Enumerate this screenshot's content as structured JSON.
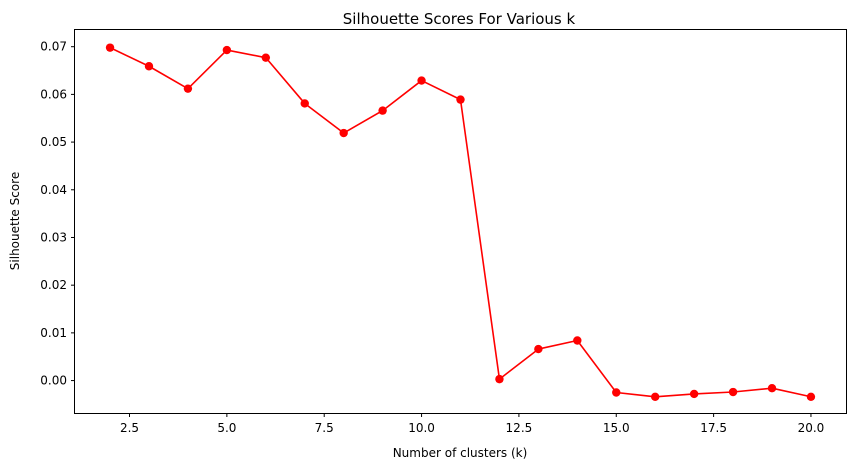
{
  "chart_data": {
    "type": "line",
    "title": "Silhouette Scores For Various k",
    "xlabel": "Number of clusters (k)",
    "ylabel": "Silhouette Score",
    "xlim": [
      1.1,
      20.9
    ],
    "ylim": [
      -0.0068,
      0.0735
    ],
    "xticks": [
      2.5,
      5.0,
      7.5,
      10.0,
      12.5,
      15.0,
      17.5,
      20.0
    ],
    "xtick_labels": [
      "2.5",
      "5.0",
      "7.5",
      "10.0",
      "12.5",
      "15.0",
      "17.5",
      "20.0"
    ],
    "yticks": [
      0.0,
      0.01,
      0.02,
      0.03,
      0.04,
      0.05,
      0.06,
      0.07
    ],
    "ytick_labels": [
      "0.00",
      "0.01",
      "0.02",
      "0.03",
      "0.04",
      "0.05",
      "0.06",
      "0.07"
    ],
    "grid": false,
    "series": [
      {
        "color": "#ff0000",
        "marker": "circle",
        "x": [
          2,
          3,
          4,
          5,
          6,
          7,
          8,
          9,
          10,
          11,
          12,
          13,
          14,
          15,
          16,
          17,
          18,
          19,
          20
        ],
        "y": [
          0.0698,
          0.0659,
          0.0612,
          0.0693,
          0.0677,
          0.0581,
          0.0519,
          0.0566,
          0.0629,
          0.0589,
          0.0003,
          0.0066,
          0.0084,
          -0.0025,
          -0.0034,
          -0.0028,
          -0.0024,
          -0.0016,
          -0.0034
        ]
      }
    ]
  }
}
